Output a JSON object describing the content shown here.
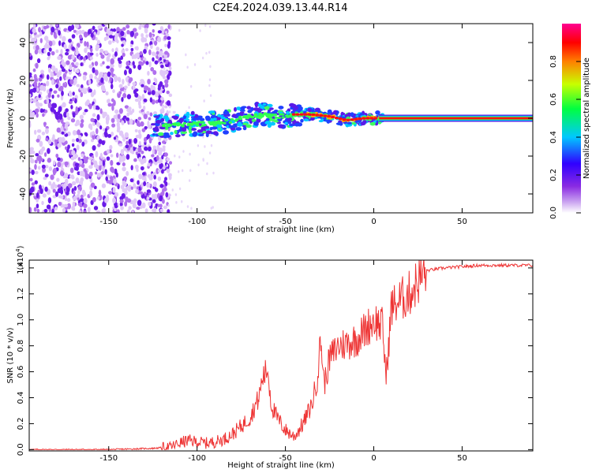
{
  "title": "C2E4.2024.039.13.44.R14",
  "chart_data": [
    {
      "type": "heatmap",
      "xlabel": "Height of straight line (km)",
      "ylabel": "Frequency (Hz)",
      "xlim": [
        -195,
        90
      ],
      "ylim": [
        -50,
        50
      ],
      "xticks": [
        -150,
        -100,
        -50,
        0,
        50
      ],
      "yticks": [
        -40,
        -20,
        0,
        20,
        40
      ],
      "ridge": {
        "x": [
          -125,
          -115,
          -105,
          -95,
          -85,
          -75,
          -65,
          -55,
          -45,
          -35,
          -25,
          -15,
          -5,
          0,
          5,
          20,
          40,
          60,
          90
        ],
        "frequency": [
          -4,
          -4,
          -3,
          -3,
          -2,
          0,
          2,
          1,
          2,
          2,
          1,
          -1,
          0,
          0,
          0,
          0,
          0,
          0,
          0
        ],
        "normalized_amplitude": [
          0.35,
          0.4,
          0.45,
          0.5,
          0.5,
          0.55,
          0.6,
          0.65,
          0.7,
          0.75,
          0.8,
          0.85,
          0.9,
          0.9,
          0.92,
          0.95,
          0.95,
          0.95,
          0.95
        ]
      },
      "noise_region_x": [
        -195,
        -120
      ],
      "colorbar": {
        "label": "Normalized spectral amplitude",
        "range": [
          0,
          1
        ],
        "ticks": [
          "0.0",
          "0.2",
          "0.4",
          "0.6",
          "0.8"
        ],
        "colors": [
          "#ffffff",
          "#8a2be2",
          "#3000ff",
          "#00c8ff",
          "#00ff40",
          "#c8ff00",
          "#ff8000",
          "#ff0000",
          "#ff0090"
        ]
      }
    },
    {
      "type": "line",
      "xlabel": "Height of straight line (km)",
      "ylabel": "SNR (10 * v/v)",
      "scale_label": "(x10",
      "scale_exponent": "4",
      "scale_close": ")",
      "xlim": [
        -195,
        90
      ],
      "ylim": [
        -0.01,
        1.46
      ],
      "xticks": [
        -150,
        -100,
        -50,
        0,
        50
      ],
      "yticks": [
        "0.0",
        "0.2",
        "0.4",
        "0.6",
        "0.8",
        "1.0",
        "1.2",
        "1.4"
      ],
      "series": [
        {
          "name": "SNR",
          "color": "#ee3333",
          "x": [
            -195,
            -150,
            -125,
            -115,
            -110,
            -105,
            -100,
            -95,
            -90,
            -85,
            -80,
            -75,
            -70,
            -65,
            -63,
            -60,
            -58,
            -55,
            -50,
            -45,
            -40,
            -35,
            -32,
            -30,
            -28,
            -25,
            -20,
            -15,
            -10,
            -5,
            0,
            5,
            7,
            10,
            15,
            20,
            25,
            30,
            40,
            50,
            60,
            70,
            80,
            90
          ],
          "values": [
            0.0,
            0.0,
            0.01,
            0.02,
            0.05,
            0.07,
            0.06,
            0.05,
            0.06,
            0.08,
            0.12,
            0.18,
            0.25,
            0.4,
            0.55,
            0.62,
            0.35,
            0.25,
            0.15,
            0.1,
            0.2,
            0.35,
            0.55,
            0.85,
            0.5,
            0.7,
            0.8,
            0.82,
            0.85,
            0.92,
            1.0,
            0.95,
            0.55,
            1.1,
            1.15,
            1.2,
            1.3,
            1.38,
            1.4,
            1.41,
            1.42,
            1.42,
            1.42,
            1.42
          ]
        }
      ]
    }
  ]
}
